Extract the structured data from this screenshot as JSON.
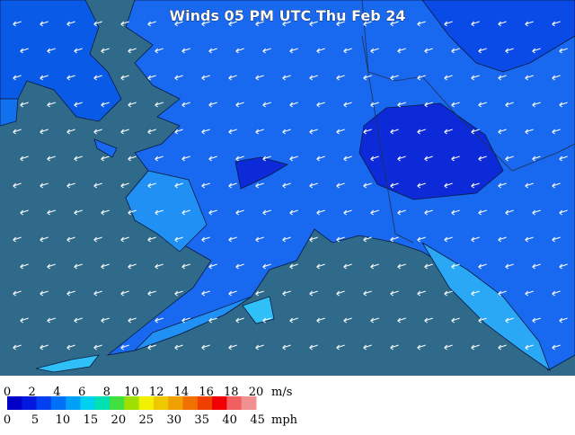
{
  "map": {
    "title": "Winds 05 PM UTC Thu Feb 24"
  },
  "legend": {
    "ms_unit": "m/s",
    "ms_ticks": [
      0,
      2,
      4,
      6,
      8,
      10,
      12,
      14,
      16,
      18,
      20
    ],
    "mph_unit": "mph",
    "mph_ticks": [
      0,
      5,
      10,
      15,
      20,
      25,
      30,
      35,
      40,
      45
    ],
    "colors": [
      "#0000c8",
      "#0018e0",
      "#0040f0",
      "#0070f8",
      "#00a0f8",
      "#00d0f0",
      "#00e0b0",
      "#40e040",
      "#a0e000",
      "#f0f000",
      "#f0c800",
      "#f0a000",
      "#f07000",
      "#f04000",
      "#f00000",
      "#f06060",
      "#f09090"
    ]
  }
}
